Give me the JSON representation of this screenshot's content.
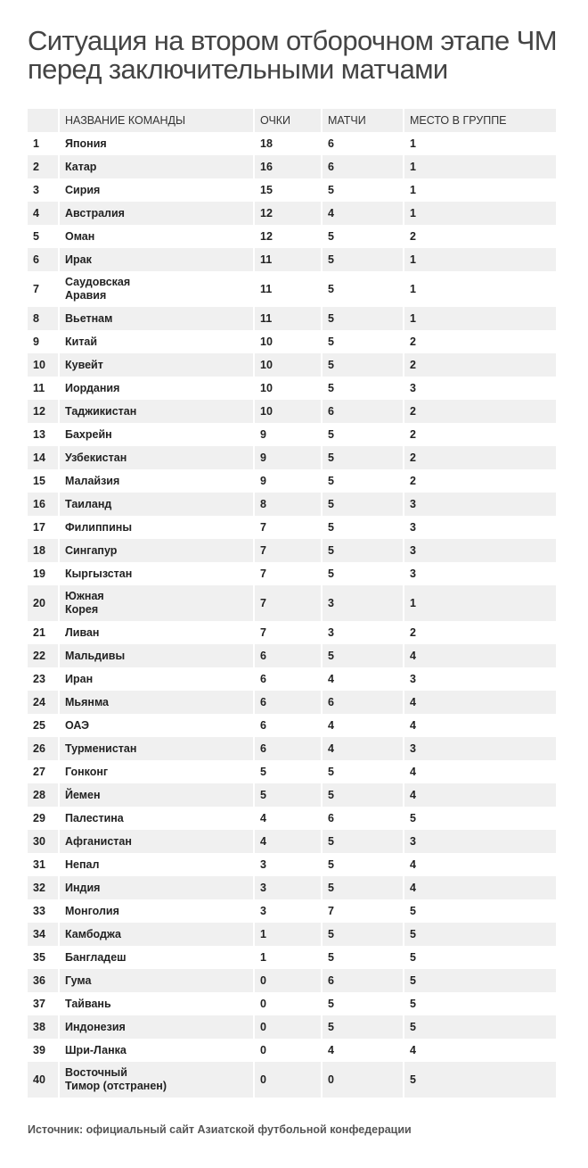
{
  "title": "Ситуация на втором отборочном этапе ЧМ перед заключительными матчами",
  "table": {
    "headers": [
      "",
      "НАЗВАНИЕ КОМАНДЫ",
      "ОЧКИ",
      "МАТЧИ",
      "МЕСТО В ГРУППЕ"
    ],
    "rows": [
      [
        "1",
        "Япония",
        "18",
        "6",
        "1"
      ],
      [
        "2",
        "Катар",
        "16",
        "6",
        "1"
      ],
      [
        "3",
        "Сирия",
        "15",
        "5",
        "1"
      ],
      [
        "4",
        "Австралия",
        "12",
        "4",
        "1"
      ],
      [
        "5",
        "Оман",
        "12",
        "5",
        "2"
      ],
      [
        "6",
        "Ирак",
        "11",
        "5",
        "1"
      ],
      [
        "7",
        "Саудовская Аравия",
        "11",
        "5",
        "1"
      ],
      [
        "8",
        "Вьетнам",
        "11",
        "5",
        "1"
      ],
      [
        "9",
        "Китай",
        "10",
        "5",
        "2"
      ],
      [
        "10",
        "Кувейт",
        "10",
        "5",
        "2"
      ],
      [
        "11",
        "Иордания",
        "10",
        "5",
        "3"
      ],
      [
        "12",
        "Таджикистан",
        "10",
        "6",
        "2"
      ],
      [
        "13",
        "Бахрейн",
        "9",
        "5",
        "2"
      ],
      [
        "14",
        "Узбекистан",
        "9",
        "5",
        "2"
      ],
      [
        "15",
        "Малайзия",
        "9",
        "5",
        "2"
      ],
      [
        "16",
        "Таиланд",
        "8",
        "5",
        "3"
      ],
      [
        "17",
        "Филиппины",
        "7",
        "5",
        "3"
      ],
      [
        "18",
        "Сингапур",
        "7",
        "5",
        "3"
      ],
      [
        "19",
        "Кыргызстан",
        "7",
        "5",
        "3"
      ],
      [
        "20",
        "Южная Корея",
        "7",
        "3",
        "1"
      ],
      [
        "21",
        "Ливан",
        "7",
        "3",
        "2"
      ],
      [
        "22",
        "Мальдивы",
        "6",
        "5",
        "4"
      ],
      [
        "23",
        "Иран",
        "6",
        "4",
        "3"
      ],
      [
        "24",
        "Мьянма",
        "6",
        "6",
        "4"
      ],
      [
        "25",
        "ОАЭ",
        "6",
        "4",
        "4"
      ],
      [
        "26",
        "Турменистан",
        "6",
        "4",
        "3"
      ],
      [
        "27",
        "Гонконг",
        "5",
        "5",
        "4"
      ],
      [
        "28",
        "Йемен",
        "5",
        "5",
        "4"
      ],
      [
        "29",
        "Палестина",
        "4",
        "6",
        "5"
      ],
      [
        "30",
        "Афганистан",
        "4",
        "5",
        "3"
      ],
      [
        "31",
        "Непал",
        "3",
        "5",
        "4"
      ],
      [
        "32",
        "Индия",
        "3",
        "5",
        "4"
      ],
      [
        "33",
        "Монголия",
        "3",
        "7",
        "5"
      ],
      [
        "34",
        "Камбоджа",
        "1",
        "5",
        "5"
      ],
      [
        "35",
        "Бангладеш",
        "1",
        "5",
        "5"
      ],
      [
        "36",
        "Гума",
        "0",
        "6",
        "5"
      ],
      [
        "37",
        "Тайвань",
        "0",
        "5",
        "5"
      ],
      [
        "38",
        "Индонезия",
        "0",
        "5",
        "5"
      ],
      [
        "39",
        "Шри-Ланка",
        "0",
        "4",
        "4"
      ],
      [
        "40",
        "Восточный Тимор (отстранен)",
        "0",
        "0",
        "5"
      ]
    ]
  },
  "source": "Источник:  официальный сайт Азиатской футбольной конфедерации",
  "colors": {
    "row_shade": "#f0f0f0",
    "title": "#444444",
    "text": "#222222"
  }
}
